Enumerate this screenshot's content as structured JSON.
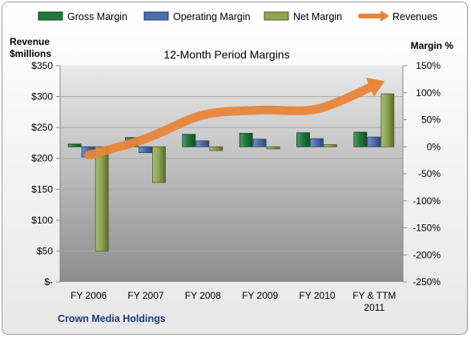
{
  "chart_data": {
    "type": "bar",
    "title": "12-Month Period Margins",
    "company": "Crown Media Holdings",
    "categories": [
      [
        "FY 2006"
      ],
      [
        "FY 2007"
      ],
      [
        "FY 2008"
      ],
      [
        "FY 2009"
      ],
      [
        "FY 2010"
      ],
      [
        "FY & TTM",
        "2011"
      ]
    ],
    "left_axis": {
      "label_line1": "Revenue",
      "label_line2": "$millions",
      "ticks": [
        350,
        300,
        250,
        200,
        150,
        100,
        50,
        0
      ],
      "tick_labels": [
        "$350",
        "$300",
        "$250",
        "$200",
        "$150",
        "$100",
        "$50",
        "$-"
      ],
      "ylim": [
        0,
        350
      ]
    },
    "right_axis": {
      "label": "Margin %",
      "ticks": [
        150,
        100,
        50,
        0,
        -50,
        -100,
        -150,
        -200,
        -250
      ],
      "tick_labels": [
        "150%",
        "100%",
        "50%",
        "0%",
        "-50%",
        "-100%",
        "-150%",
        "-200%",
        "-250%"
      ],
      "ylim": [
        -250,
        150
      ]
    },
    "series": [
      {
        "name": "Gross Margin",
        "axis": "right",
        "color": "#1e7a3c",
        "values": [
          5,
          17,
          23,
          25,
          26,
          27
        ]
      },
      {
        "name": "Operating Margin",
        "axis": "right",
        "color": "#4a6fb0",
        "values": [
          -19,
          -11,
          11,
          14,
          15,
          18
        ]
      },
      {
        "name": "Net Margin",
        "axis": "right",
        "color": "#8fa64c",
        "values": [
          -193,
          -66,
          -7,
          -4,
          4,
          98
        ]
      }
    ],
    "revenues": {
      "name": "Revenues",
      "axis": "left",
      "color": "#e8853a",
      "values": [
        205,
        232,
        270,
        278,
        280,
        318
      ]
    },
    "grid": true,
    "legend_position": "top"
  }
}
